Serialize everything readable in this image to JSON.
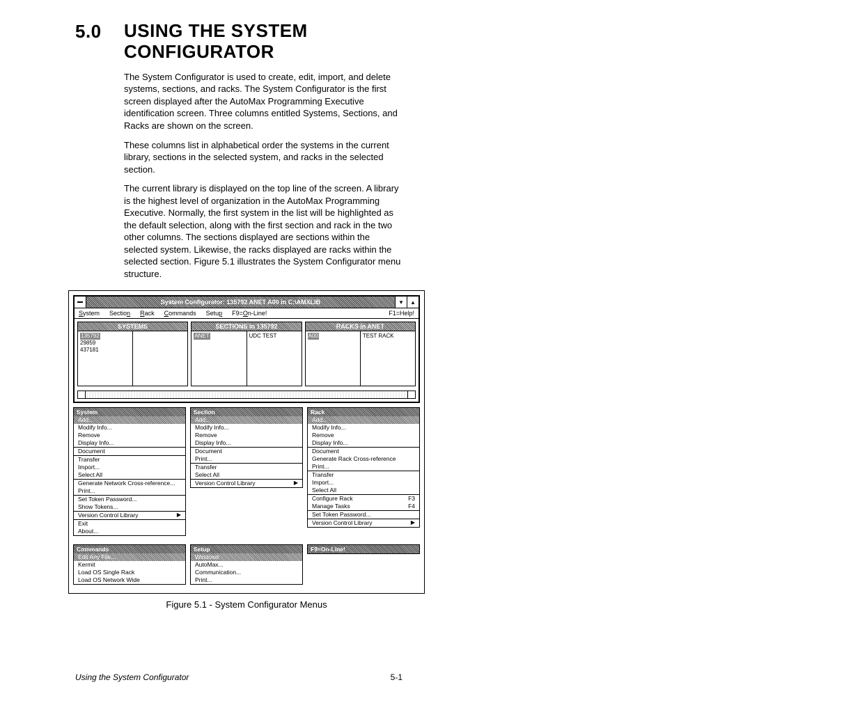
{
  "section_number": "5.0",
  "section_title_line1": "USING THE SYSTEM",
  "section_title_line2": "CONFIGURATOR",
  "paragraphs": [
    "The System Configurator is used to create, edit, import, and delete systems, sections, and racks. The System Configurator is the first screen displayed after the AutoMax Programming Executive identification screen. Three columns entitled Systems, Sections, and Racks are shown on the screen.",
    "These columns list in alphabetical order the systems in the current library, sections in the selected system, and racks in the selected section.",
    "The current library is displayed on the top line of the screen. A library is the highest level of organization in the AutoMax Programming Executive. Normally, the first system in the list will be highlighted as the default selection, along with the first section and rack in the two other columns. The sections displayed are sections within the selected system. Likewise, the racks displayed are racks within the selected section. Figure 5.1 illustrates the System Configurator menu structure."
  ],
  "window": {
    "title": "System Configurator:  135792 ANET A00 in C:\\AMXLIB",
    "menubar": [
      "System",
      "Section",
      "Rack",
      "Commands",
      "Setup",
      "F9=On-Line!"
    ],
    "menubar_right": "F1=Help!",
    "panels": [
      {
        "title": "SYSTEMS",
        "cols": [
          [
            "135792",
            "29859",
            "437181"
          ]
        ],
        "selected": "135792"
      },
      {
        "title": "SECTIONS in 135792",
        "cols": [
          [
            "ANET"
          ],
          [
            "UDC  TEST"
          ]
        ],
        "selected": "ANET"
      },
      {
        "title": "RACKS in ANET",
        "cols": [
          [
            "A00"
          ],
          [
            "TEST  RACK"
          ]
        ],
        "selected": "A00"
      }
    ]
  },
  "menus_row1": [
    {
      "title": "System",
      "items": [
        {
          "t": "Add...",
          "hi": true
        },
        {
          "t": "Modify Info..."
        },
        {
          "t": "Remove"
        },
        {
          "t": "Display Info..."
        },
        "-",
        {
          "t": "Document"
        },
        "-",
        {
          "t": "Transfer"
        },
        {
          "t": "Import..."
        },
        {
          "t": "Select All"
        },
        "-",
        {
          "t": "Generate Network Cross-reference..."
        },
        {
          "t": "Print..."
        },
        "-",
        {
          "t": "Set Token Password..."
        },
        {
          "t": "Show Tokens..."
        },
        "-",
        {
          "t": "Version Control Library",
          "sub": true
        },
        "-",
        {
          "t": "Exit"
        },
        {
          "t": "About..."
        }
      ]
    },
    {
      "title": "Section",
      "items": [
        {
          "t": "Add...",
          "hi": true
        },
        {
          "t": "Modify Info..."
        },
        {
          "t": "Remove"
        },
        {
          "t": "Display Info..."
        },
        "-",
        {
          "t": "Document"
        },
        {
          "t": "Print..."
        },
        "-",
        {
          "t": "Transfer"
        },
        {
          "t": "Select All"
        },
        "-",
        {
          "t": "Version Control Library",
          "sub": true
        }
      ]
    },
    {
      "title": "Rack",
      "items": [
        {
          "t": "Add...",
          "hi": true
        },
        {
          "t": "Modify Info..."
        },
        {
          "t": "Remove"
        },
        {
          "t": "Display Info..."
        },
        "-",
        {
          "t": "Document"
        },
        {
          "t": "Generate Rack Cross-reference"
        },
        {
          "t": "Print..."
        },
        "-",
        {
          "t": "Transfer"
        },
        {
          "t": "Import..."
        },
        {
          "t": "Select All"
        },
        "-",
        {
          "t": "Configure Rack",
          "k": "F3"
        },
        {
          "t": "Manage Tasks",
          "k": "F4"
        },
        "-",
        {
          "t": "Set Token Password..."
        },
        "-",
        {
          "t": "Version Control Library",
          "sub": true
        }
      ]
    }
  ],
  "menus_row2": [
    {
      "title": "Commands",
      "items": [
        {
          "t": "Edit Any File...",
          "hi": true
        },
        {
          "t": "Kermit"
        },
        {
          "t": "Load OS Single  Rack"
        },
        {
          "t": "Load OS Network Wide"
        }
      ]
    },
    {
      "title": "Setup",
      "items": [
        {
          "t": "Windows",
          "hi": true
        },
        {
          "t": "AutoMax..."
        },
        {
          "t": "Communication..."
        },
        {
          "t": "Print..."
        }
      ]
    },
    {
      "title": "F9=On-Line!",
      "items": []
    }
  ],
  "figure_caption": "Figure 5.1 - System Configurator Menus",
  "footer_left": "Using the System Configurator",
  "footer_right": "5-1"
}
